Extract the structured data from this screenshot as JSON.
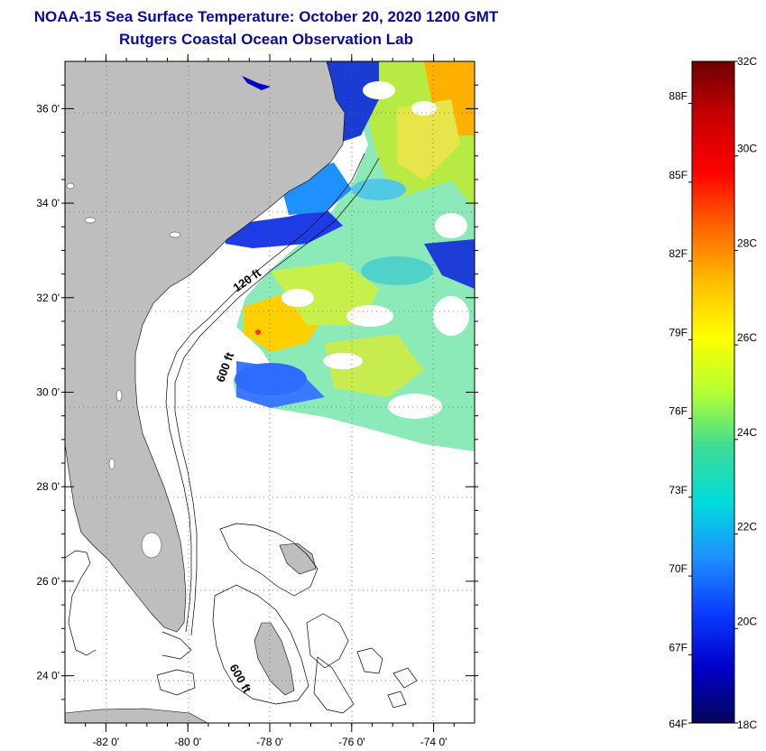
{
  "title": {
    "line1": "NOAA-15 Sea Surface Temperature:  October 20, 2020 1200 GMT",
    "line2": "Rutgers Coastal Ocean Observation Lab"
  },
  "map": {
    "lat_range": [
      23,
      37
    ],
    "lon_range": [
      -83,
      -73
    ],
    "lat_ticks": [
      {
        "value": 24,
        "label": "24 0'"
      },
      {
        "value": 26,
        "label": "26 0'"
      },
      {
        "value": 28,
        "label": "28 0'"
      },
      {
        "value": 30,
        "label": "30 0'"
      },
      {
        "value": 32,
        "label": "32 0'"
      },
      {
        "value": 34,
        "label": "34 0'"
      },
      {
        "value": 36,
        "label": "36 0'"
      }
    ],
    "lon_ticks": [
      {
        "value": -82,
        "label": "-82 0'"
      },
      {
        "value": -80,
        "label": "-80 0'"
      },
      {
        "value": -78,
        "label": "-78 0'"
      },
      {
        "value": -76,
        "label": "-76 0'"
      },
      {
        "value": -74,
        "label": "-74 0'"
      }
    ],
    "isobath_labels": [
      {
        "text": "120 ft",
        "lon": -78.5,
        "lat": 32.3
      },
      {
        "text": "600 ft",
        "lon": -79.0,
        "lat": 30.5
      },
      {
        "text": "600 ft",
        "lon": -78.8,
        "lat": 23.9
      }
    ],
    "colors": {
      "land": "#bebebe",
      "ocean": "#ffffff",
      "grid": "#555555"
    }
  },
  "colorbar": {
    "celsius_range": [
      18,
      32
    ],
    "fahrenheit_range": [
      64.4,
      89.6
    ],
    "celsius_labels": [
      "18C",
      "20C",
      "22C",
      "24C",
      "26C",
      "28C",
      "30C",
      "32C"
    ],
    "fahrenheit_labels": [
      "64F",
      "67F",
      "70F",
      "73F",
      "76F",
      "79F",
      "82F",
      "85F",
      "88F"
    ],
    "stops": [
      "#05055a",
      "#0000c8",
      "#0a3cff",
      "#1e90ff",
      "#00dcdc",
      "#3cdc96",
      "#b4ff32",
      "#ffff00",
      "#ffbe00",
      "#ff6400",
      "#ff0000",
      "#c80000",
      "#6e0000"
    ]
  }
}
